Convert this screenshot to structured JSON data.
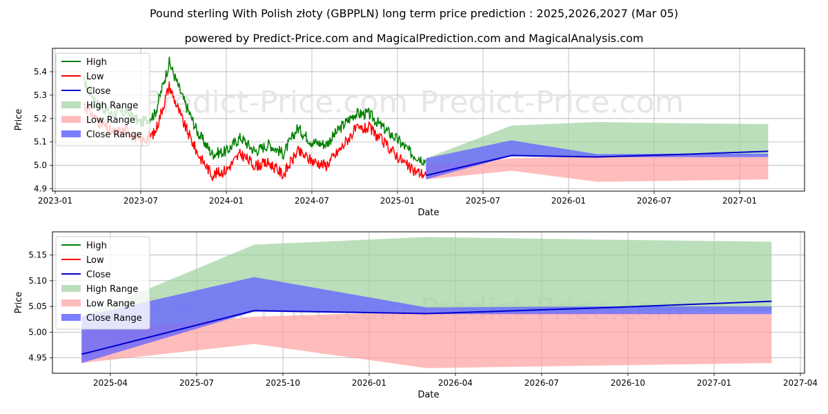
{
  "title": "Pound sterling With Polish złoty (GBPPLN) long term price prediction : 2025,2026,2027 (Mar 05)",
  "subtitle": "powered by Predict-Price.com and MagicalPrediction.com and MagicalAnalysis.com",
  "watermark": "Predict-Price.com",
  "colors": {
    "high": "#008000",
    "low": "#ff0000",
    "close": "#0000cc",
    "high_range": "#9ed29e",
    "low_range": "#ffa0a0",
    "close_range": "#6666ff"
  },
  "chart_data": [
    {
      "type": "line",
      "xlabel": "Date",
      "ylabel": "Price",
      "x_ticks": [
        "2023-01",
        "2023-07",
        "2024-01",
        "2024-07",
        "2025-01",
        "2025-07",
        "2026-01",
        "2026-07",
        "2027-01"
      ],
      "y_ticks": [
        "4.9",
        "5.0",
        "5.1",
        "5.2",
        "5.3",
        "5.4"
      ],
      "ylim": [
        4.89,
        5.5
      ],
      "legend": [
        "High",
        "Low",
        "Close",
        "High Range",
        "Low Range",
        "Close Range"
      ],
      "legend_position": "upper-left",
      "grid": true,
      "history_high": [
        [
          "2023-03",
          5.36
        ],
        [
          "2023-04",
          5.26
        ],
        [
          "2023-05",
          5.22
        ],
        [
          "2023-06",
          5.23
        ],
        [
          "2023-07",
          5.18
        ],
        [
          "2023-08",
          5.22
        ],
        [
          "2023-09",
          5.44
        ],
        [
          "2023-10",
          5.28
        ],
        [
          "2023-11",
          5.14
        ],
        [
          "2023-12",
          5.05
        ],
        [
          "2024-01",
          5.06
        ],
        [
          "2024-02",
          5.12
        ],
        [
          "2024-03",
          5.06
        ],
        [
          "2024-04",
          5.09
        ],
        [
          "2024-05",
          5.05
        ],
        [
          "2024-06",
          5.16
        ],
        [
          "2024-07",
          5.1
        ],
        [
          "2024-08",
          5.09
        ],
        [
          "2024-09",
          5.16
        ],
        [
          "2024-10",
          5.22
        ],
        [
          "2024-11",
          5.22
        ],
        [
          "2024-12",
          5.16
        ],
        [
          "2025-01",
          5.11
        ],
        [
          "2025-02",
          5.05
        ],
        [
          "2025-03",
          5.02
        ]
      ],
      "history_low": [
        [
          "2023-03",
          5.26
        ],
        [
          "2023-04",
          5.19
        ],
        [
          "2023-05",
          5.14
        ],
        [
          "2023-06",
          5.15
        ],
        [
          "2023-07",
          5.1
        ],
        [
          "2023-08",
          5.14
        ],
        [
          "2023-09",
          5.34
        ],
        [
          "2023-10",
          5.18
        ],
        [
          "2023-11",
          5.05
        ],
        [
          "2023-12",
          4.96
        ],
        [
          "2024-01",
          4.98
        ],
        [
          "2024-02",
          5.05
        ],
        [
          "2024-03",
          5.0
        ],
        [
          "2024-04",
          5.01
        ],
        [
          "2024-05",
          4.96
        ],
        [
          "2024-06",
          5.06
        ],
        [
          "2024-07",
          5.02
        ],
        [
          "2024-08",
          5.0
        ],
        [
          "2024-09",
          5.07
        ],
        [
          "2024-10",
          5.15
        ],
        [
          "2024-11",
          5.16
        ],
        [
          "2024-12",
          5.1
        ],
        [
          "2025-01",
          5.04
        ],
        [
          "2025-02",
          4.98
        ],
        [
          "2025-03",
          4.96
        ]
      ],
      "forecast_dates": [
        "2025-03",
        "2025-09",
        "2026-03",
        "2026-09",
        "2027-03"
      ],
      "close": [
        4.957,
        5.042,
        5.036,
        5.047,
        5.06
      ],
      "high_range": {
        "upper": [
          5.03,
          5.17,
          5.185,
          5.18,
          5.176
        ],
        "lower": [
          4.95,
          5.04,
          5.04,
          5.04,
          5.04
        ]
      },
      "low_range": {
        "upper": [
          5.0,
          5.03,
          5.04,
          5.04,
          5.035
        ],
        "lower": [
          4.94,
          4.977,
          4.93,
          4.935,
          4.94
        ]
      },
      "close_range": {
        "upper": [
          5.03,
          5.107,
          5.048,
          5.05,
          5.05
        ],
        "lower": [
          4.94,
          5.04,
          5.035,
          5.035,
          5.035
        ]
      }
    },
    {
      "type": "line",
      "xlabel": "Date",
      "ylabel": "Price",
      "x_ticks": [
        "2025-04",
        "2025-07",
        "2025-10",
        "2026-01",
        "2026-04",
        "2026-07",
        "2026-10",
        "2027-01",
        "2027-04"
      ],
      "y_ticks": [
        "4.95",
        "5.00",
        "5.05",
        "5.10",
        "5.15"
      ],
      "ylim": [
        4.92,
        5.195
      ],
      "legend": [
        "High",
        "Low",
        "Close",
        "High Range",
        "Low Range",
        "Close Range"
      ],
      "legend_position": "upper-left",
      "grid": true,
      "forecast_dates": [
        "2025-03",
        "2025-09",
        "2026-03",
        "2026-09",
        "2027-03"
      ],
      "close": [
        4.957,
        5.042,
        5.036,
        5.047,
        5.06
      ],
      "high_range": {
        "upper": [
          5.03,
          5.17,
          5.185,
          5.18,
          5.176
        ],
        "lower": [
          4.95,
          5.04,
          5.04,
          5.04,
          5.04
        ]
      },
      "low_range": {
        "upper": [
          5.0,
          5.03,
          5.04,
          5.04,
          5.035
        ],
        "lower": [
          4.94,
          4.977,
          4.93,
          4.935,
          4.94
        ]
      },
      "close_range": {
        "upper": [
          5.03,
          5.107,
          5.048,
          5.05,
          5.05
        ],
        "lower": [
          4.94,
          5.04,
          5.035,
          5.035,
          5.035
        ]
      }
    }
  ]
}
